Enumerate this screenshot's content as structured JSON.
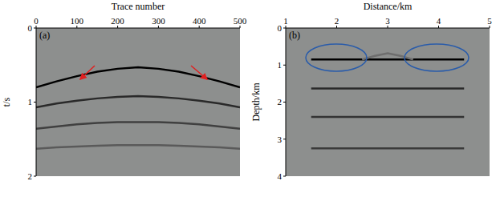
{
  "chart_data": [
    {
      "type": "line",
      "title": "(a)",
      "x_label": "Trace number",
      "y_label": "t/s",
      "x": [
        0,
        50,
        100,
        150,
        200,
        250,
        300,
        350,
        400,
        450,
        500
      ],
      "xlim": [
        0,
        500
      ],
      "xticks": [
        0,
        100,
        200,
        300,
        400,
        500
      ],
      "ylim": [
        0,
        2
      ],
      "yticks": [
        0,
        1,
        2
      ],
      "grid": false,
      "series": [
        {
          "color": "#000000",
          "values": [
            0.8,
            0.72,
            0.65,
            0.59,
            0.55,
            0.53,
            0.55,
            0.59,
            0.65,
            0.72,
            0.8
          ]
        },
        {
          "color": "#2a2a2a",
          "values": [
            1.07,
            1.02,
            0.98,
            0.95,
            0.93,
            0.92,
            0.93,
            0.95,
            0.98,
            1.02,
            1.07
          ]
        },
        {
          "color": "#404040",
          "values": [
            1.36,
            1.33,
            1.3,
            1.28,
            1.27,
            1.27,
            1.27,
            1.28,
            1.3,
            1.33,
            1.36
          ]
        },
        {
          "color": "#5a5a5a",
          "values": [
            1.63,
            1.61,
            1.6,
            1.59,
            1.58,
            1.58,
            1.58,
            1.59,
            1.6,
            1.61,
            1.63
          ]
        }
      ]
    },
    {
      "type": "line",
      "title": "(b)",
      "x_label": "Distance/km",
      "y_label": "Depth/km",
      "x": [
        1.5,
        2,
        2.5,
        2.75,
        3,
        3.25,
        3.5,
        4,
        4.5
      ],
      "xlim": [
        1,
        5
      ],
      "xticks": [
        1,
        2,
        3,
        4,
        5
      ],
      "ylim": [
        0,
        4
      ],
      "yticks": [
        0,
        1,
        2,
        3,
        4
      ],
      "grid": false,
      "series": [
        {
          "color": "#000000",
          "values": [
            0.85,
            0.85,
            0.85,
            0.85,
            0.85,
            0.85,
            0.85,
            0.85,
            0.85
          ]
        },
        {
          "color": "#6e6e6e",
          "values": [
            null,
            null,
            0.85,
            0.75,
            0.68,
            0.75,
            0.85,
            null,
            null
          ]
        },
        {
          "color": "#2a2a2a",
          "values": [
            1.63,
            1.63,
            1.63,
            1.63,
            1.63,
            1.63,
            1.63,
            1.63,
            1.63
          ]
        },
        {
          "color": "#333333",
          "values": [
            2.4,
            2.4,
            2.4,
            2.4,
            2.4,
            2.4,
            2.4,
            2.4,
            2.4
          ]
        },
        {
          "color": "#3a3a3a",
          "values": [
            3.25,
            3.25,
            3.25,
            3.25,
            3.25,
            3.25,
            3.25,
            3.25,
            3.25
          ]
        }
      ]
    }
  ]
}
